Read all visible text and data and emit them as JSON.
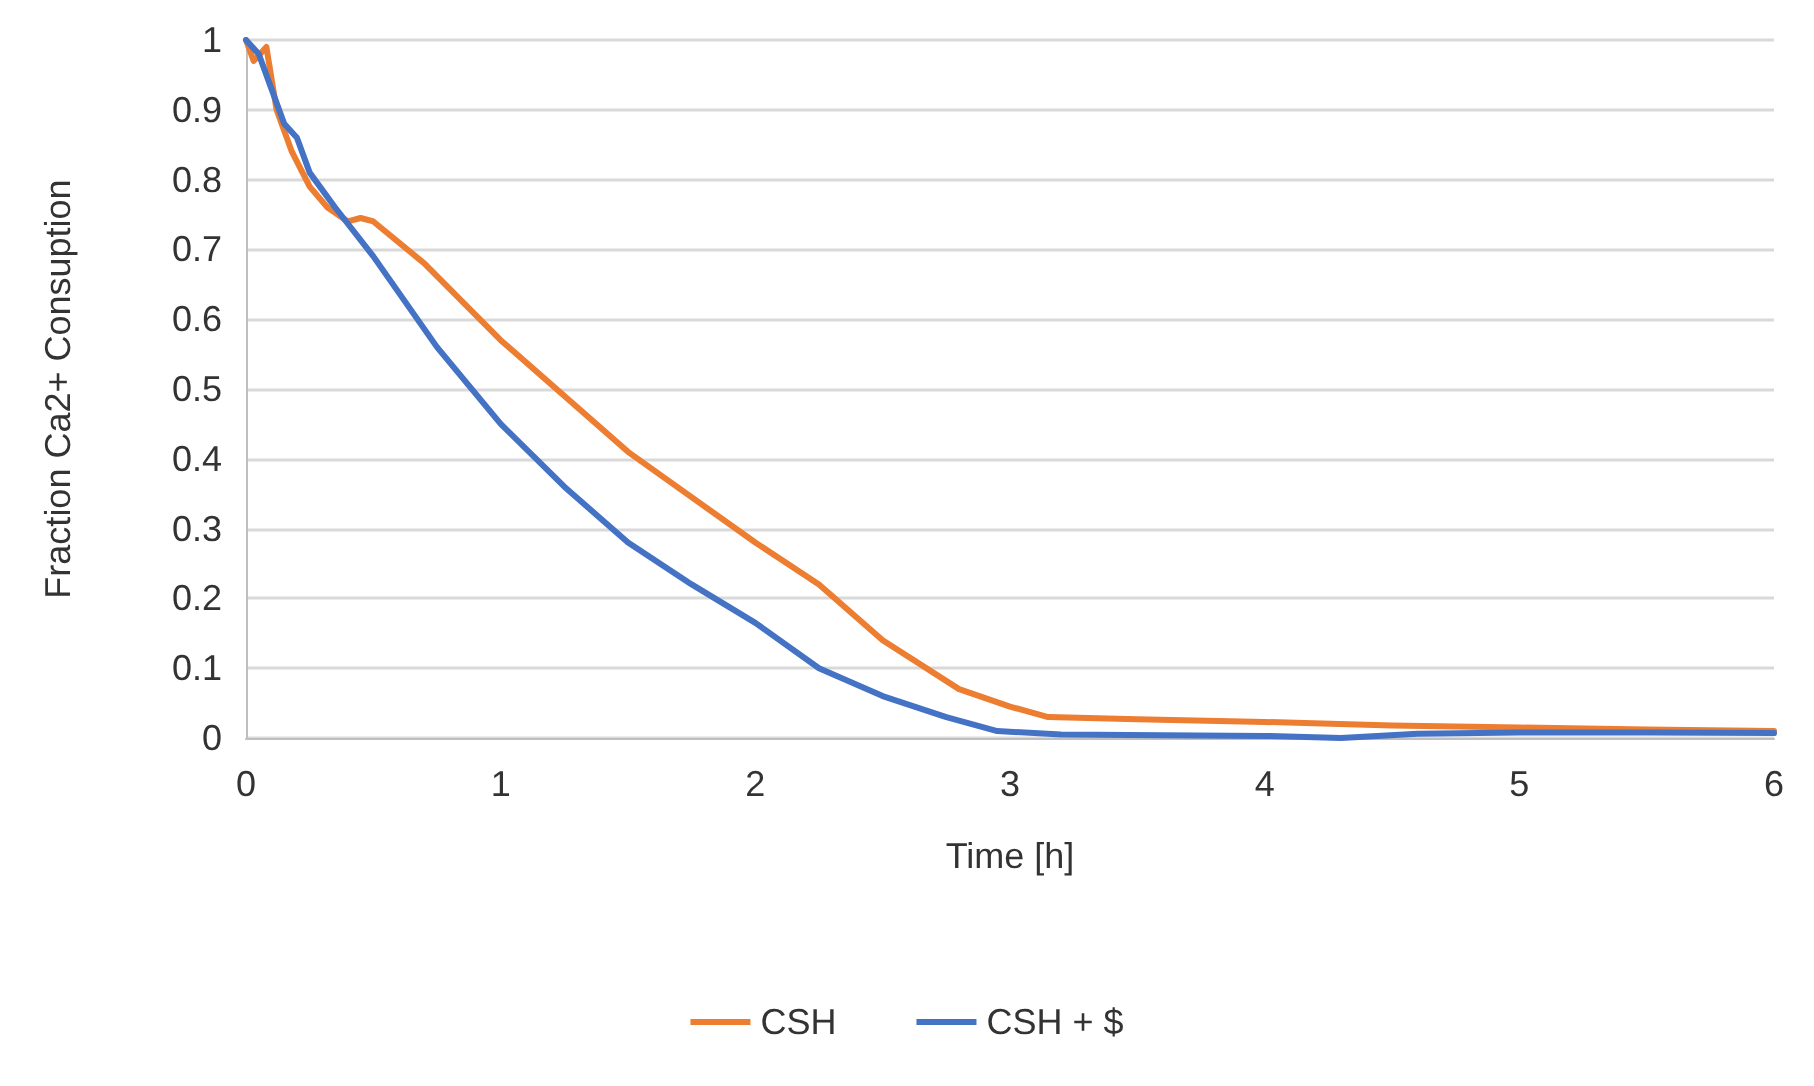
{
  "chart_data": {
    "type": "line",
    "xlabel": "Time [h]",
    "ylabel": "Fraction Ca2+ Consuption",
    "xlim": [
      0,
      6
    ],
    "xticks": [
      0,
      1,
      2,
      3,
      4,
      5,
      6
    ],
    "ylim": [
      0,
      1
    ],
    "yticks": [
      0,
      0.1,
      0.2,
      0.3,
      0.4,
      0.5,
      0.6,
      0.7,
      0.8,
      0.9,
      1
    ],
    "grid": "y",
    "legend": "bottom",
    "marker": "none",
    "line_style": "solid",
    "series": [
      {
        "name": "CSH",
        "color": "#ed7d31",
        "x": [
          0,
          0.03,
          0.08,
          0.12,
          0.18,
          0.25,
          0.32,
          0.4,
          0.45,
          0.5,
          0.7,
          1,
          1.5,
          2,
          2.25,
          2.5,
          2.8,
          3,
          3.15,
          3.5,
          4,
          4.5,
          5,
          5.5,
          6
        ],
        "values": [
          1,
          0.97,
          0.99,
          0.9,
          0.84,
          0.79,
          0.76,
          0.74,
          0.745,
          0.74,
          0.68,
          0.57,
          0.41,
          0.28,
          0.22,
          0.14,
          0.07,
          0.045,
          0.03,
          0.027,
          0.023,
          0.018,
          0.015,
          0.012,
          0.01
        ]
      },
      {
        "name": "CSH + $",
        "color": "#4472c4",
        "x": [
          0,
          0.05,
          0.1,
          0.15,
          0.2,
          0.25,
          0.35,
          0.5,
          0.75,
          1,
          1.25,
          1.5,
          1.75,
          2,
          2.25,
          2.5,
          2.75,
          2.95,
          3.2,
          4,
          4.3,
          4.6,
          5,
          5.5,
          6
        ],
        "values": [
          1,
          0.98,
          0.93,
          0.88,
          0.86,
          0.81,
          0.76,
          0.69,
          0.56,
          0.45,
          0.36,
          0.28,
          0.22,
          0.165,
          0.1,
          0.06,
          0.03,
          0.01,
          0.005,
          0.003,
          0,
          0.006,
          0.008,
          0.008,
          0.007
        ]
      }
    ]
  }
}
